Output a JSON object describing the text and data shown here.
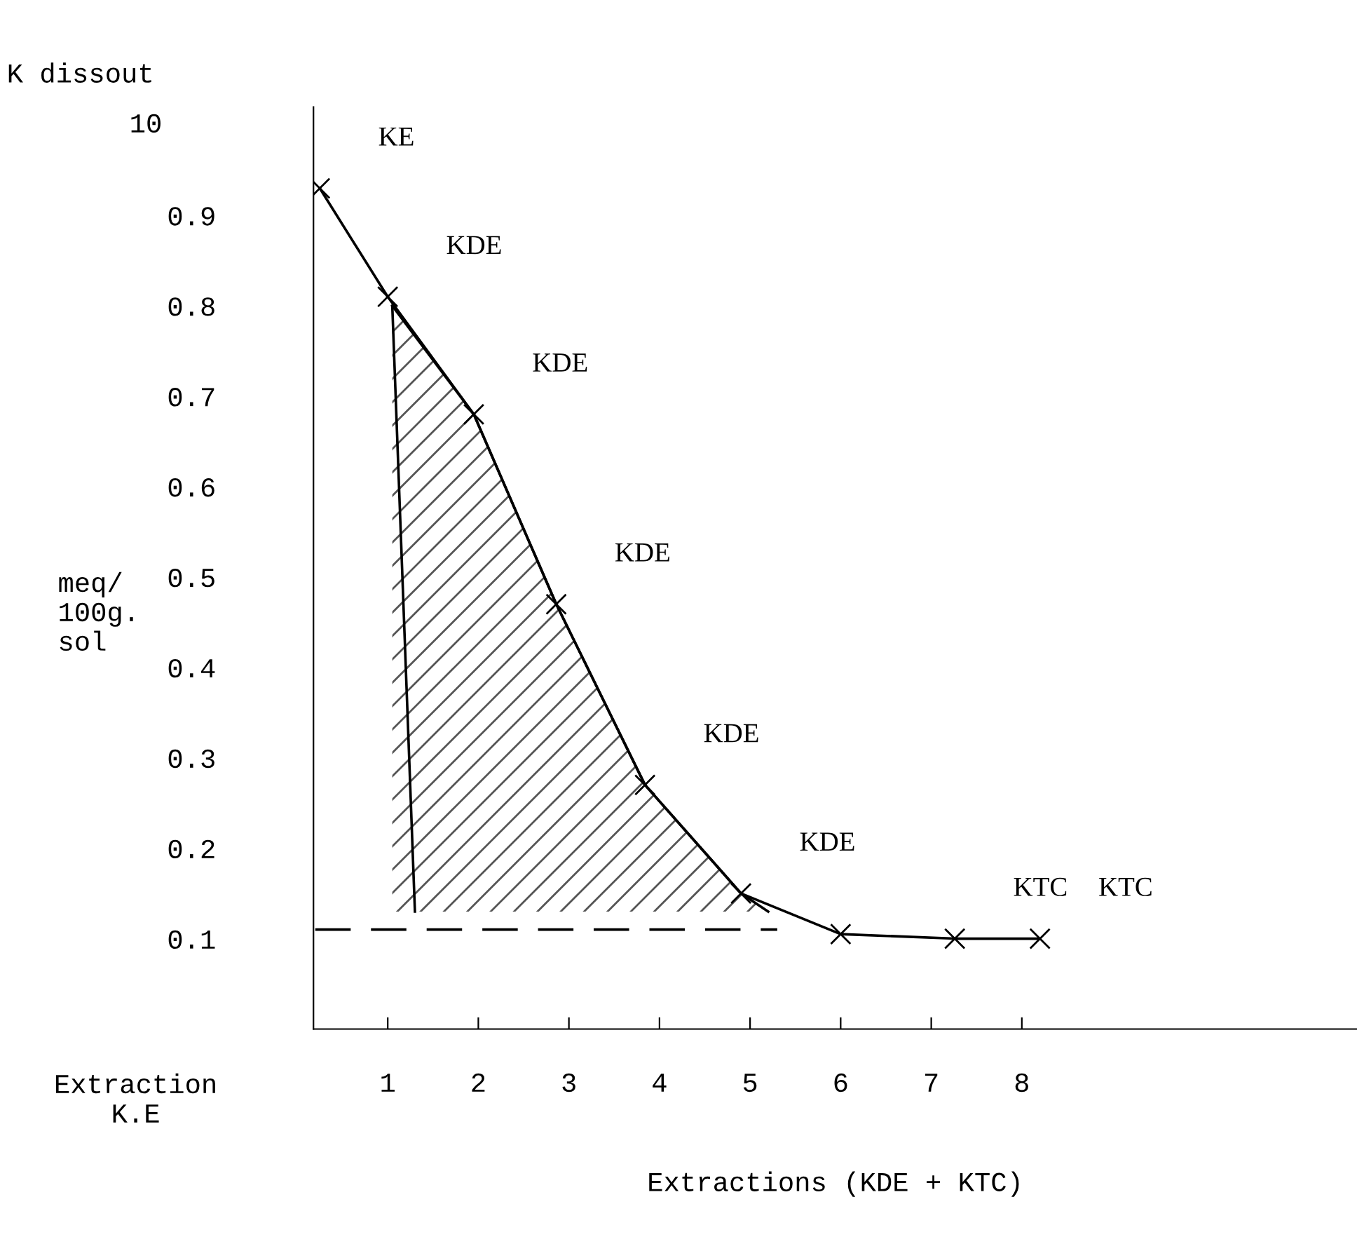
{
  "chart_data": {
    "type": "line",
    "title": "K dissout",
    "ylabel": "meq/\n100g.\nsol",
    "xlabel": "Extractions (KDE + KTC)",
    "xlim": [
      0.18,
      11.7
    ],
    "xticks": [
      1,
      2,
      3,
      4,
      5,
      6,
      7,
      8
    ],
    "ylim": [
      0,
      1.02
    ],
    "yticks": [
      0.1,
      0.2,
      0.3,
      0.4,
      0.5,
      0.6,
      0.7,
      0.8,
      0.9
    ],
    "grid": false,
    "legend": false,
    "series": [
      {
        "color": "#000000",
        "marker": "cross",
        "line_style": "solid",
        "x": [
          0.25,
          1.0,
          1.95,
          2.86,
          3.84,
          4.9,
          6.0,
          7.26,
          8.2
        ],
        "values": [
          0.93,
          0.81,
          0.68,
          0.47,
          0.27,
          0.15,
          0.105,
          0.1,
          0.1
        ]
      },
      {
        "color": "#000000",
        "marker": "none",
        "line_style": "dashed",
        "x": [
          0.2,
          5.3
        ],
        "values": [
          0.11,
          0.11
        ]
      },
      {
        "color": "#000000",
        "marker": "none",
        "line_style": "solid",
        "x": [
          1.05,
          1.3
        ],
        "values": [
          0.8,
          0.13
        ]
      },
      {
        "color": "#000000",
        "marker": "none",
        "line_style": "solid",
        "x": [
          1.05,
          1.95,
          2.86,
          3.84,
          4.9,
          5.2
        ],
        "values": [
          0.8,
          0.68,
          0.47,
          0.27,
          0.15,
          0.13
        ],
        "lower": [
          0.13,
          0.13,
          0.13,
          0.13,
          0.13,
          0.13
        ],
        "upper": [
          0.8,
          0.68,
          0.47,
          0.27,
          0.15,
          0.13
        ]
      }
    ],
    "annotations": [
      {
        "text": "KE",
        "x": 0.25,
        "y": 0.93
      },
      {
        "text": "KDE",
        "x": 1.0,
        "y": 0.81
      },
      {
        "text": "KDE",
        "x": 1.95,
        "y": 0.68
      },
      {
        "text": "KDE",
        "x": 2.86,
        "y": 0.47
      },
      {
        "text": "KDE",
        "x": 3.84,
        "y": 0.27
      },
      {
        "text": "KDE",
        "x": 4.9,
        "y": 0.15
      },
      {
        "text": "KTC",
        "x": 7.26,
        "y": 0.1
      },
      {
        "text": "KTC",
        "x": 8.2,
        "y": 0.1
      },
      "10",
      "Extraction\nK.E"
    ]
  }
}
